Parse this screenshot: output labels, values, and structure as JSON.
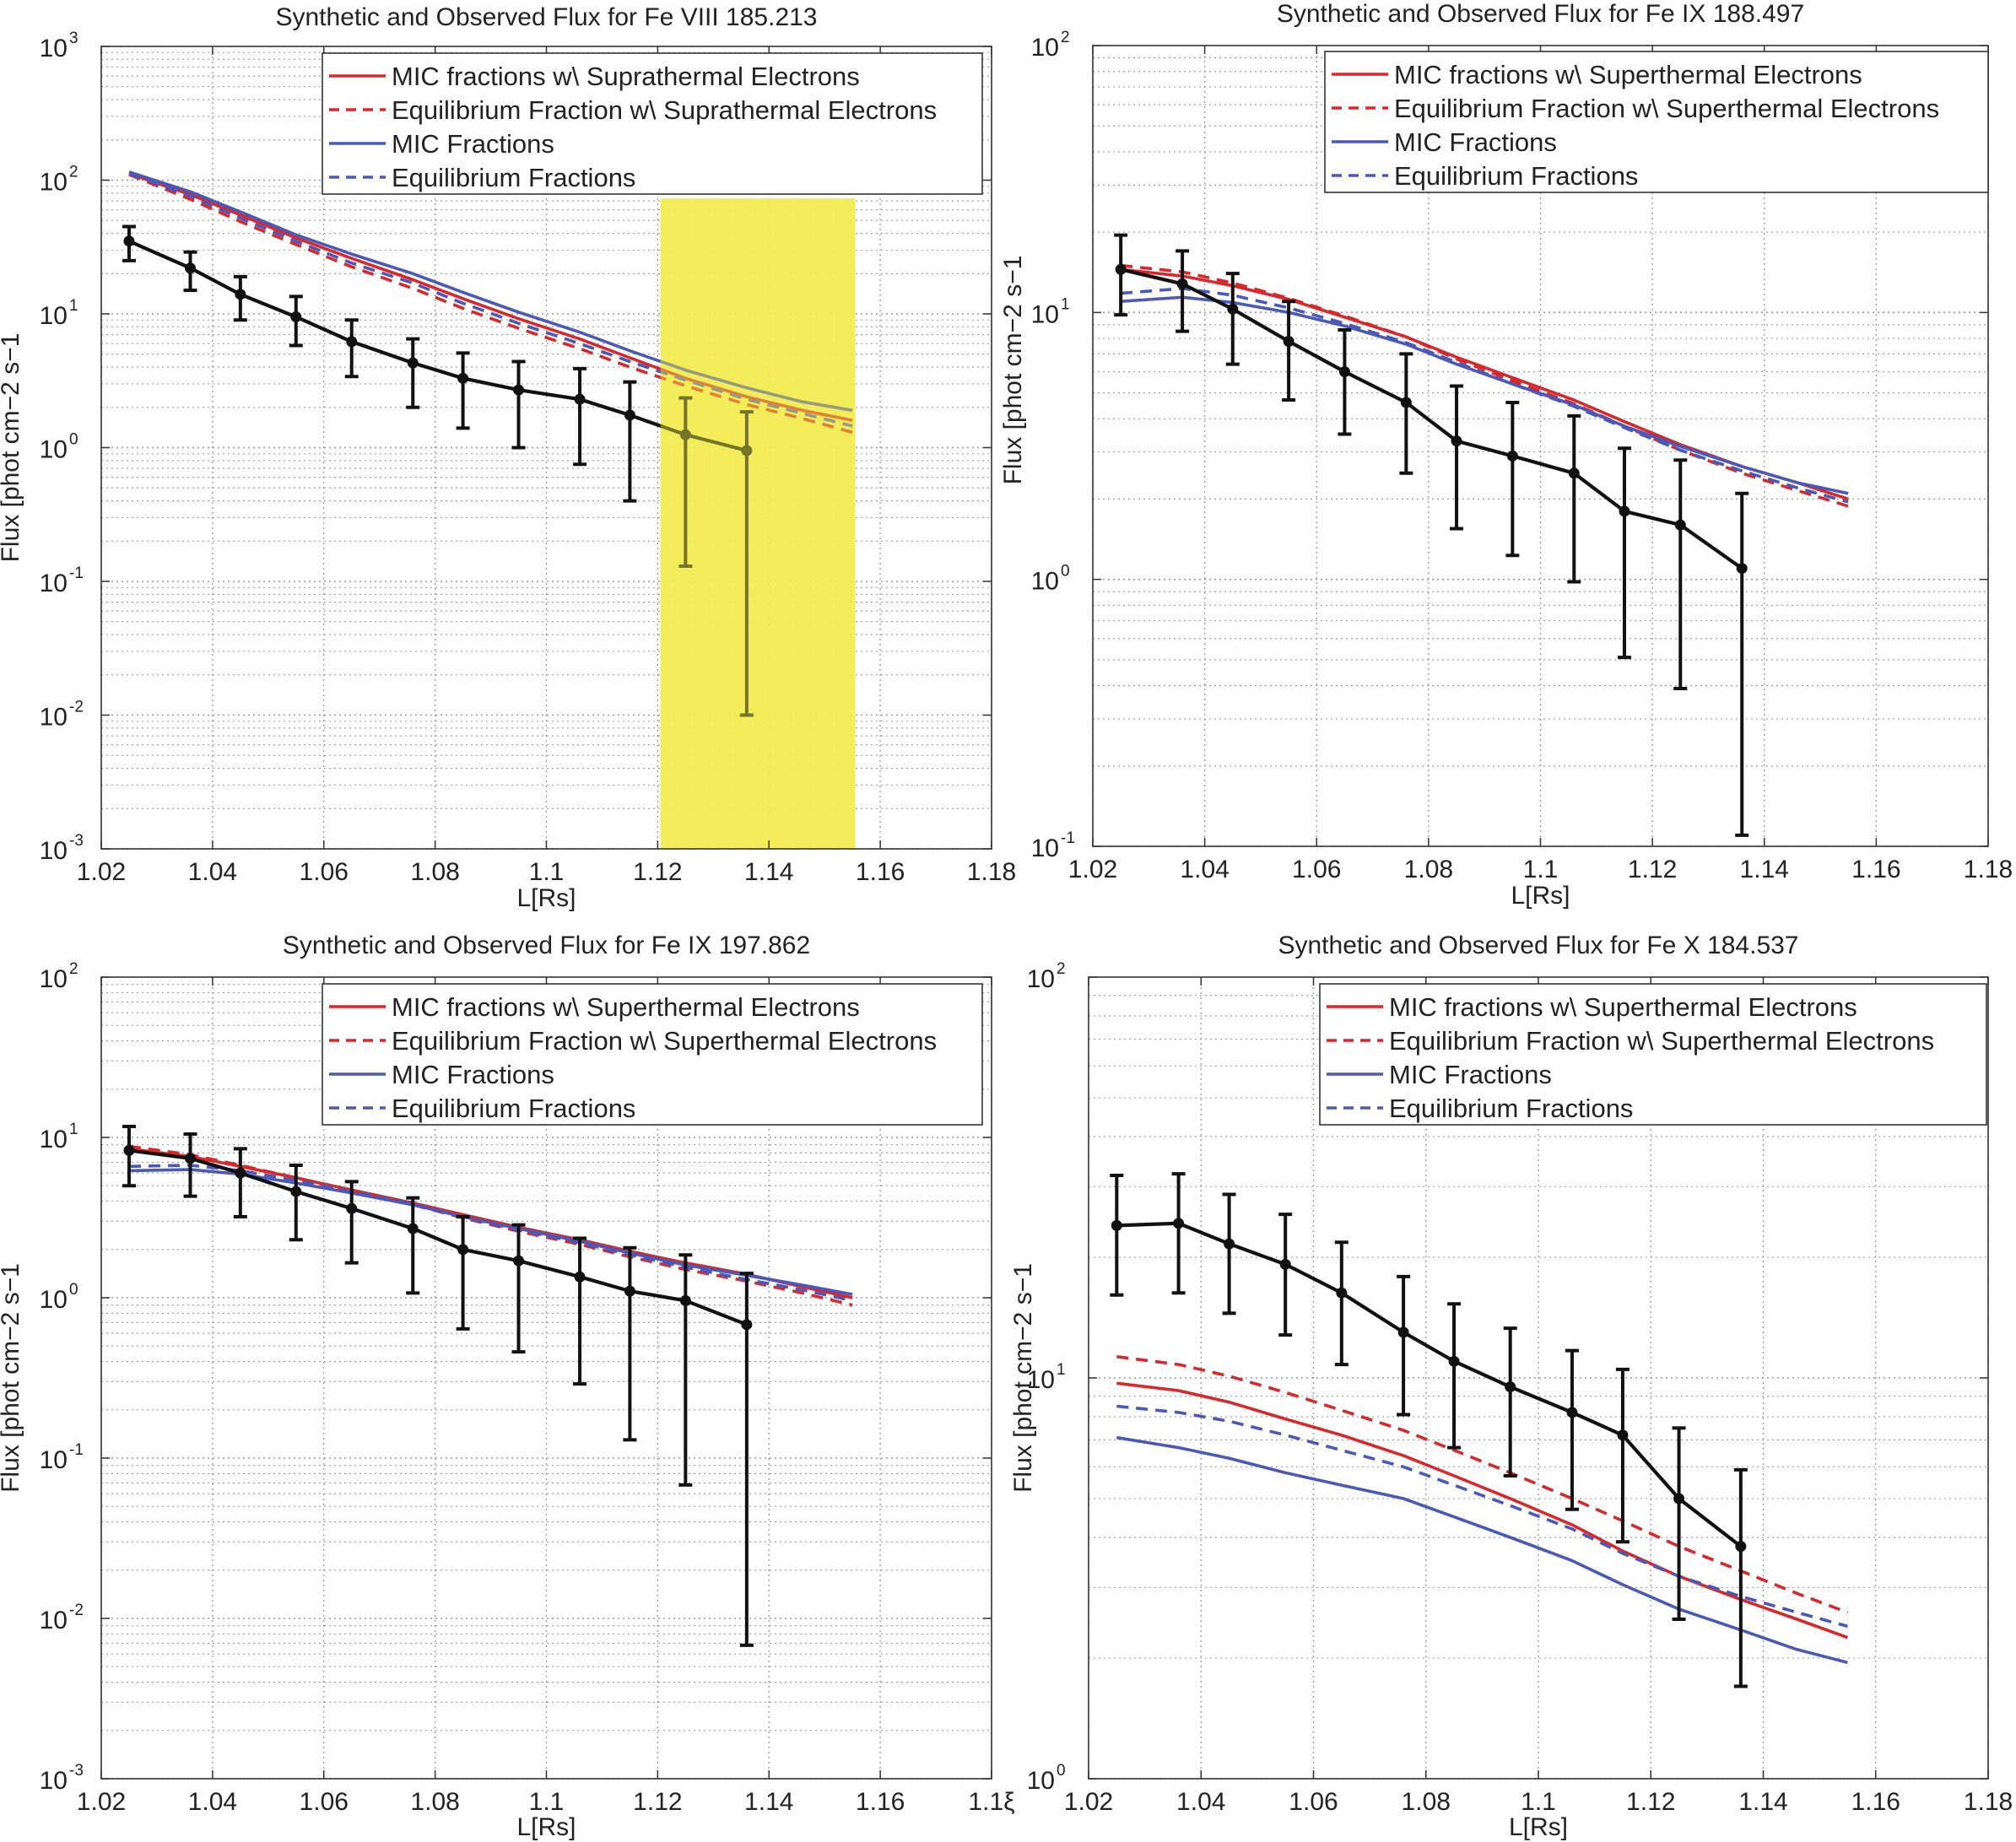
{
  "colors": {
    "mic_suprathermal": "#d8282b",
    "eq_suprathermal": "#d8282b",
    "mic": "#4a58b8",
    "eq": "#4a58b8",
    "observed": "#111111",
    "highlight": "#f2ea4a"
  },
  "chart_data": [
    {
      "type": "line",
      "title": "Synthetic and Observed Flux for Fe VIII 185.213",
      "xlabel": "L[Rs]",
      "ylabel": "Flux [phot cm−2 s−1",
      "xlim": [
        1.02,
        1.18
      ],
      "ylim": [
        0.001,
        1000
      ],
      "yscale": "log",
      "grid": true,
      "xticks": [
        "1.02",
        "1.04",
        "1.06",
        "1.08",
        "1.1",
        "1.12",
        "1.14",
        "1.16",
        "1.18"
      ],
      "xtick_values": [
        1.02,
        1.04,
        1.06,
        1.08,
        1.1,
        1.12,
        1.14,
        1.16,
        1.18
      ],
      "ytick_exponents": [
        "-3",
        "-2",
        "-1",
        "0",
        "1",
        "2",
        "3"
      ],
      "highlight_x": [
        1.1205,
        1.1555
      ],
      "legend": [
        "MIC fractions w\\ Suprathermal Electrons",
        "Equilibrium Fraction w\\ Suprathermal Electrons",
        "MIC Fractions",
        "Equilibrium Fractions"
      ],
      "series": [
        {
          "name": "MIC fractions w\\ Suprathermal Electrons",
          "x": [
            1.025,
            1.036,
            1.045,
            1.055,
            1.065,
            1.076,
            1.085,
            1.095,
            1.106,
            1.115,
            1.125,
            1.136,
            1.146,
            1.155
          ],
          "y": [
            112,
            78,
            55,
            37,
            26,
            18,
            13,
            9.2,
            6.5,
            4.7,
            3.3,
            2.4,
            1.9,
            1.6
          ]
        },
        {
          "name": "Equilibrium Fraction w\\ Suprathermal Electrons",
          "x": [
            1.025,
            1.036,
            1.045,
            1.055,
            1.065,
            1.076,
            1.085,
            1.095,
            1.106,
            1.115,
            1.125,
            1.136,
            1.146,
            1.155
          ],
          "y": [
            110,
            72,
            49,
            33,
            22.5,
            15.5,
            11,
            7.8,
            5.5,
            4,
            2.9,
            2.1,
            1.65,
            1.3
          ]
        },
        {
          "name": "MIC Fractions",
          "x": [
            1.025,
            1.036,
            1.045,
            1.055,
            1.065,
            1.076,
            1.085,
            1.095,
            1.106,
            1.115,
            1.125,
            1.136,
            1.146,
            1.155
          ],
          "y": [
            115,
            82,
            58,
            39,
            28,
            20,
            14.5,
            10.3,
            7.3,
            5.3,
            3.8,
            2.8,
            2.2,
            1.9
          ]
        },
        {
          "name": "Equilibrium Fractions",
          "x": [
            1.025,
            1.036,
            1.045,
            1.055,
            1.065,
            1.076,
            1.085,
            1.095,
            1.106,
            1.115,
            1.125,
            1.136,
            1.146,
            1.155
          ],
          "y": [
            112,
            76,
            52,
            35,
            24,
            17,
            12,
            8.5,
            6,
            4.4,
            3.2,
            2.3,
            1.8,
            1.45
          ]
        }
      ],
      "observed": {
        "name": "Observed",
        "x": [
          1.025,
          1.036,
          1.045,
          1.055,
          1.065,
          1.076,
          1.085,
          1.095,
          1.106,
          1.115,
          1.125,
          1.136
        ],
        "y": [
          35,
          22,
          14,
          9.5,
          6.2,
          4.3,
          3.3,
          2.7,
          2.3,
          1.75,
          1.25,
          0.95
        ],
        "err_low": [
          25,
          15,
          9,
          5.8,
          3.4,
          2.0,
          1.4,
          1.0,
          0.75,
          0.4,
          0.13,
          0.01
        ],
        "err_high": [
          45,
          29,
          19,
          13.5,
          9,
          6.5,
          5.1,
          4.4,
          3.9,
          3.1,
          2.35,
          1.85
        ]
      }
    },
    {
      "type": "line",
      "title": "Synthetic and Observed Flux for Fe IX 188.497",
      "xlabel": "L[Rs]",
      "ylabel": "Flux [phot cm−2 s−1",
      "xlim": [
        1.02,
        1.18
      ],
      "ylim": [
        0.1,
        100
      ],
      "yscale": "log",
      "grid": true,
      "xticks": [
        "1.02",
        "1.04",
        "1.06",
        "1.08",
        "1.1",
        "1.12",
        "1.14",
        "1.16",
        "1.18"
      ],
      "xtick_values": [
        1.02,
        1.04,
        1.06,
        1.08,
        1.1,
        1.12,
        1.14,
        1.16,
        1.18
      ],
      "ytick_exponents": [
        "-1",
        "0",
        "1",
        "2"
      ],
      "legend": [
        "MIC fractions w\\ Superthermal Electrons",
        "Equilibrium Fraction w\\ Superthermal Electrons",
        "MIC Fractions",
        "Equilibrium Fractions"
      ],
      "series": [
        {
          "name": "MIC fractions w\\ Superthermal Electrons",
          "x": [
            1.025,
            1.036,
            1.045,
            1.055,
            1.065,
            1.076,
            1.085,
            1.095,
            1.106,
            1.115,
            1.125,
            1.136,
            1.146,
            1.155
          ],
          "y": [
            14.5,
            13.7,
            12.6,
            11.2,
            9.6,
            8.1,
            6.8,
            5.7,
            4.7,
            3.9,
            3.2,
            2.65,
            2.3,
            2.0
          ]
        },
        {
          "name": "Equilibrium Fraction w\\ Superthermal Electrons",
          "x": [
            1.025,
            1.036,
            1.045,
            1.055,
            1.065,
            1.076,
            1.085,
            1.095,
            1.106,
            1.115,
            1.125,
            1.136,
            1.146,
            1.155
          ],
          "y": [
            15,
            14.2,
            12.9,
            11.3,
            9.7,
            8.1,
            6.7,
            5.55,
            4.55,
            3.75,
            3.05,
            2.5,
            2.15,
            1.88
          ]
        },
        {
          "name": "MIC Fractions",
          "x": [
            1.025,
            1.036,
            1.045,
            1.055,
            1.065,
            1.076,
            1.085,
            1.095,
            1.106,
            1.115,
            1.125,
            1.136,
            1.146,
            1.155
          ],
          "y": [
            11,
            11.4,
            10.9,
            10,
            8.9,
            7.6,
            6.4,
            5.4,
            4.5,
            3.75,
            3.15,
            2.65,
            2.3,
            2.1
          ]
        },
        {
          "name": "Equilibrium Fractions",
          "x": [
            1.025,
            1.036,
            1.045,
            1.055,
            1.065,
            1.076,
            1.085,
            1.095,
            1.106,
            1.115,
            1.125,
            1.136,
            1.146,
            1.155
          ],
          "y": [
            11.8,
            12.3,
            11.6,
            10.4,
            9.1,
            7.7,
            6.5,
            5.4,
            4.45,
            3.7,
            3.05,
            2.55,
            2.2,
            1.95
          ]
        }
      ],
      "observed": {
        "name": "Observed",
        "x": [
          1.025,
          1.036,
          1.045,
          1.055,
          1.065,
          1.076,
          1.085,
          1.095,
          1.106,
          1.115,
          1.125,
          1.136
        ],
        "y": [
          14.5,
          12.8,
          10.3,
          7.8,
          6.0,
          4.6,
          3.3,
          2.9,
          2.5,
          1.8,
          1.6,
          1.1
        ],
        "err_low": [
          9.8,
          8.5,
          6.4,
          4.7,
          3.5,
          2.5,
          1.55,
          1.23,
          0.98,
          0.51,
          0.39,
          0.11
        ],
        "err_high": [
          19.5,
          17,
          14,
          11,
          8.6,
          7,
          5.3,
          4.6,
          4.1,
          3.1,
          2.8,
          2.1
        ]
      }
    },
    {
      "type": "line",
      "title": "Synthetic and Observed Flux for Fe IX 197.862",
      "xlabel": "L[Rs]",
      "ylabel": "Flux [phot cm−2 s−1",
      "xlim": [
        1.02,
        1.18
      ],
      "ylim": [
        0.001,
        100
      ],
      "yscale": "log",
      "grid": true,
      "xticks": [
        "1.02",
        "1.04",
        "1.06",
        "1.08",
        "1.1",
        "1.12",
        "1.14",
        "1.16",
        "1.1ξ"
      ],
      "xtick_values": [
        1.02,
        1.04,
        1.06,
        1.08,
        1.1,
        1.12,
        1.14,
        1.16,
        1.18
      ],
      "ytick_exponents": [
        "-3",
        "-2",
        "-1",
        "0",
        "1",
        "2"
      ],
      "legend": [
        "MIC fractions w\\ Superthermal Electrons",
        "Equilibrium Fraction w\\ Superthermal Electrons",
        "MIC Fractions",
        "Equilibrium Fractions"
      ],
      "series": [
        {
          "name": "MIC fractions w\\ Superthermal Electrons",
          "x": [
            1.025,
            1.036,
            1.045,
            1.055,
            1.065,
            1.076,
            1.085,
            1.095,
            1.106,
            1.115,
            1.125,
            1.136,
            1.146,
            1.155
          ],
          "y": [
            8.5,
            7.6,
            6.6,
            5.6,
            4.7,
            3.9,
            3.3,
            2.75,
            2.3,
            1.95,
            1.65,
            1.4,
            1.17,
            1.0
          ]
        },
        {
          "name": "Equilibrium Fraction w\\ Superthermal Electrons",
          "x": [
            1.025,
            1.036,
            1.045,
            1.055,
            1.065,
            1.076,
            1.085,
            1.095,
            1.106,
            1.115,
            1.125,
            1.136,
            1.146,
            1.155
          ],
          "y": [
            8.8,
            7.8,
            6.7,
            5.6,
            4.6,
            3.8,
            3.15,
            2.6,
            2.15,
            1.8,
            1.5,
            1.27,
            1.07,
            0.9
          ]
        },
        {
          "name": "MIC Fractions",
          "x": [
            1.025,
            1.036,
            1.045,
            1.055,
            1.065,
            1.076,
            1.085,
            1.095,
            1.106,
            1.115,
            1.125,
            1.136,
            1.146,
            1.155
          ],
          "y": [
            6.2,
            6.3,
            5.9,
            5.2,
            4.5,
            3.8,
            3.2,
            2.7,
            2.25,
            1.9,
            1.6,
            1.38,
            1.2,
            1.05
          ]
        },
        {
          "name": "Equilibrium Fractions",
          "x": [
            1.025,
            1.036,
            1.045,
            1.055,
            1.065,
            1.076,
            1.085,
            1.095,
            1.106,
            1.115,
            1.125,
            1.136,
            1.146,
            1.155
          ],
          "y": [
            6.6,
            6.7,
            6.2,
            5.4,
            4.6,
            3.85,
            3.2,
            2.65,
            2.2,
            1.85,
            1.55,
            1.3,
            1.12,
            0.96
          ]
        }
      ],
      "observed": {
        "name": "Observed",
        "x": [
          1.025,
          1.036,
          1.045,
          1.055,
          1.065,
          1.076,
          1.085,
          1.095,
          1.106,
          1.115,
          1.125,
          1.136
        ],
        "y": [
          8.3,
          7.4,
          6.0,
          4.6,
          3.6,
          2.7,
          2.0,
          1.7,
          1.35,
          1.1,
          0.96,
          0.68
        ],
        "err_low": [
          5.0,
          4.3,
          3.2,
          2.3,
          1.65,
          1.07,
          0.64,
          0.46,
          0.29,
          0.13,
          0.068,
          0.0068
        ],
        "err_high": [
          11.7,
          10.5,
          8.5,
          6.7,
          5.3,
          4.2,
          3.2,
          2.85,
          2.35,
          2.05,
          1.85,
          1.42
        ]
      }
    },
    {
      "type": "line",
      "title": "Synthetic and Observed Flux for Fe X 184.537",
      "xlabel": "L[Rs]",
      "ylabel": "Flux [phot cm−2 s−1",
      "xlim": [
        1.02,
        1.18
      ],
      "ylim": [
        1,
        100
      ],
      "yscale": "log",
      "grid": true,
      "xticks": [
        "1.02",
        "1.04",
        "1.06",
        "1.08",
        "1.1",
        "1.12",
        "1.14",
        "1.16",
        "1.18"
      ],
      "xtick_values": [
        1.02,
        1.04,
        1.06,
        1.08,
        1.1,
        1.12,
        1.14,
        1.16,
        1.18
      ],
      "ytick_exponents": [
        "0",
        "1",
        "2"
      ],
      "legend": [
        "MIC fractions w\\ Superthermal Electrons",
        "Equilibrium Fraction w\\ Superthermal Electrons",
        "MIC Fractions",
        "Equilibrium Fractions"
      ],
      "series": [
        {
          "name": "MIC fractions w\\ Superthermal Electrons",
          "x": [
            1.025,
            1.036,
            1.045,
            1.055,
            1.065,
            1.076,
            1.085,
            1.095,
            1.106,
            1.115,
            1.125,
            1.136,
            1.146,
            1.155
          ],
          "y": [
            9.7,
            9.3,
            8.7,
            7.9,
            7.2,
            6.4,
            5.7,
            5.0,
            4.3,
            3.7,
            3.2,
            2.8,
            2.5,
            2.25
          ]
        },
        {
          "name": "Equilibrium Fraction w\\ Superthermal Electrons",
          "x": [
            1.025,
            1.036,
            1.045,
            1.055,
            1.065,
            1.076,
            1.085,
            1.095,
            1.106,
            1.115,
            1.125,
            1.136,
            1.146,
            1.155
          ],
          "y": [
            11.3,
            10.8,
            10.1,
            9.2,
            8.3,
            7.4,
            6.6,
            5.8,
            5.0,
            4.4,
            3.8,
            3.3,
            2.9,
            2.6
          ]
        },
        {
          "name": "MIC Fractions",
          "x": [
            1.025,
            1.036,
            1.045,
            1.055,
            1.065,
            1.076,
            1.085,
            1.095,
            1.106,
            1.115,
            1.125,
            1.136,
            1.146,
            1.155
          ],
          "y": [
            7.1,
            6.7,
            6.3,
            5.8,
            5.4,
            5.0,
            4.5,
            4.0,
            3.5,
            3.05,
            2.65,
            2.35,
            2.1,
            1.95
          ]
        },
        {
          "name": "Equilibrium Fractions",
          "x": [
            1.025,
            1.036,
            1.045,
            1.055,
            1.065,
            1.076,
            1.085,
            1.095,
            1.106,
            1.115,
            1.125,
            1.136,
            1.146,
            1.155
          ],
          "y": [
            8.5,
            8.2,
            7.8,
            7.2,
            6.6,
            6.0,
            5.4,
            4.8,
            4.2,
            3.65,
            3.2,
            2.85,
            2.6,
            2.4
          ]
        }
      ],
      "observed": {
        "name": "Observed",
        "x": [
          1.025,
          1.036,
          1.045,
          1.055,
          1.065,
          1.076,
          1.085,
          1.095,
          1.106,
          1.115,
          1.125,
          1.136
        ],
        "y": [
          24,
          24.3,
          21.6,
          19.2,
          16.3,
          13,
          11,
          9.5,
          8.2,
          7.2,
          5,
          3.8
        ],
        "err_low": [
          16.1,
          16.3,
          14.5,
          12.8,
          10.8,
          8.1,
          6.7,
          5.7,
          4.7,
          3.9,
          2.5,
          1.7
        ],
        "err_high": [
          32,
          32.3,
          28.7,
          25.6,
          21.8,
          17.9,
          15.3,
          13.3,
          11.7,
          10.5,
          7.5,
          5.9
        ]
      }
    }
  ]
}
